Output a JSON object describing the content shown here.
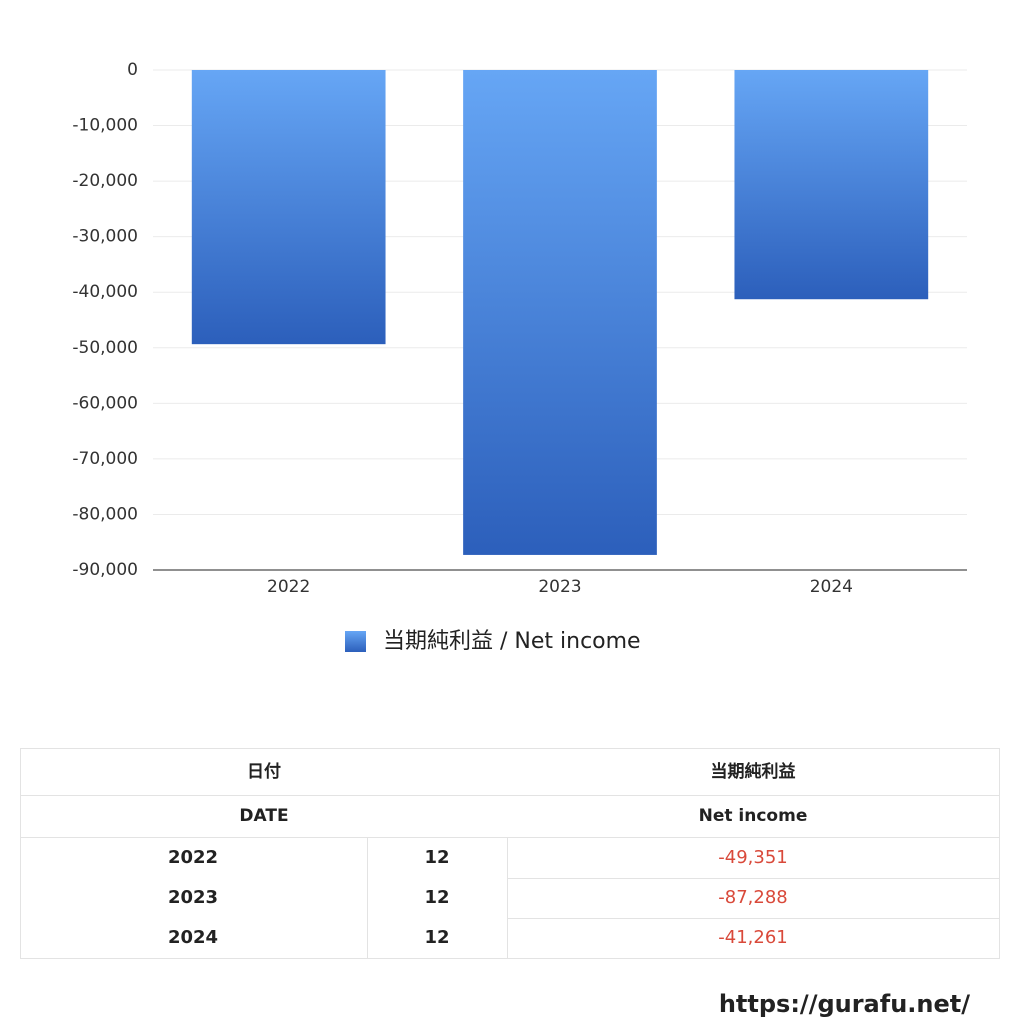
{
  "chart_data": {
    "type": "bar",
    "categories": [
      "2022",
      "2023",
      "2024"
    ],
    "series": [
      {
        "name": "当期純利益 / Net income",
        "values": [
          -49351,
          -87288,
          -41261
        ]
      }
    ],
    "ylim": [
      -90000,
      0
    ],
    "yticks": [
      0,
      {
        "value": -10000,
        "label": "-10,000"
      },
      {
        "value": -20000,
        "label": "-20,000"
      },
      {
        "value": -30000,
        "label": "-30,000"
      },
      {
        "value": -40000,
        "label": "-40,000"
      },
      {
        "value": -50000,
        "label": "-50,000"
      },
      {
        "value": -60000,
        "label": "-60,000"
      },
      {
        "value": -70000,
        "label": "-70,000"
      },
      {
        "value": -80000,
        "label": "-80,000"
      },
      {
        "value": -90000,
        "label": "-90,000"
      }
    ],
    "grid": true
  },
  "table": {
    "header": [
      [
        "日付",
        "当期純利益"
      ],
      [
        "DATE",
        "Net income"
      ]
    ],
    "rows": [
      [
        "2022",
        "12",
        "-49,351"
      ],
      [
        "2023",
        "12",
        "-87,288"
      ],
      [
        "2024",
        "12",
        "-41,261"
      ]
    ]
  },
  "footer": "https://gurafu.net/"
}
